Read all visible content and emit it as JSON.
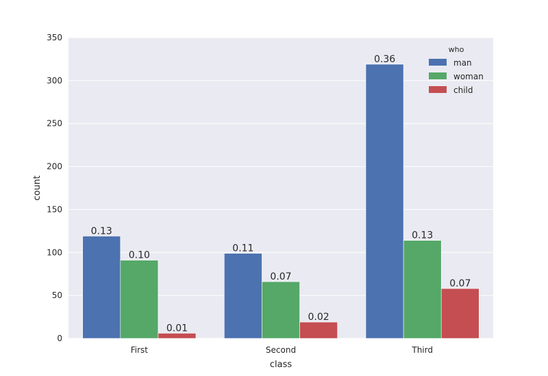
{
  "chart_data": {
    "type": "bar",
    "xlabel": "class",
    "ylabel": "count",
    "categories": [
      "First",
      "Second",
      "Third"
    ],
    "ylim": [
      0,
      350
    ],
    "yticks": [
      0,
      50,
      100,
      150,
      200,
      250,
      300,
      350
    ],
    "grid": true,
    "legend": {
      "title": "who",
      "placement": "top-right"
    },
    "series": [
      {
        "name": "man",
        "color": "#4C72B0",
        "values": [
          119,
          99,
          319
        ],
        "labels": [
          "0.13",
          "0.11",
          "0.36"
        ]
      },
      {
        "name": "woman",
        "color": "#55A868",
        "values": [
          91,
          66,
          114
        ],
        "labels": [
          "0.10",
          "0.07",
          "0.13"
        ]
      },
      {
        "name": "child",
        "color": "#C44E52",
        "values": [
          6,
          19,
          58
        ],
        "labels": [
          "0.01",
          "0.02",
          "0.07"
        ]
      }
    ],
    "colors": {
      "plot_background": "#EAEAF2",
      "grid": "#FFFFFF"
    }
  }
}
